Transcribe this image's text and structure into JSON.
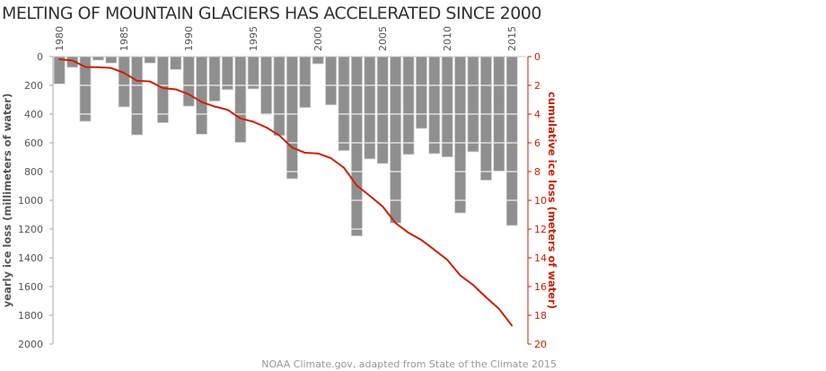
{
  "chart_data": {
    "type": "bar",
    "title": "MELTING OF MOUNTAIN GLACIERS HAS ACCELERATED SINCE 2000",
    "ylabel": "yearly ice loss (millimeters of water)",
    "y2label": "cumulative ice loss (meters of water)",
    "credit": "NOAA Climate.gov, adapted from State of the Climate 2015",
    "ylim": [
      0,
      2000
    ],
    "y2lim": [
      0,
      20
    ],
    "y_inverted": true,
    "yticks": [
      "0",
      "200",
      "400",
      "600",
      "800",
      "1000",
      "1200",
      "1400",
      "1600",
      "1800",
      "2000"
    ],
    "y2ticks": [
      "0",
      "2",
      "4",
      "6",
      "8",
      "10",
      "12",
      "14",
      "16",
      "18",
      "20"
    ],
    "xtick_labels": [
      "1980",
      "1985",
      "1990",
      "1995",
      "2000",
      "2005",
      "2010",
      "2015"
    ],
    "colors": {
      "bars": "#8f8f8f",
      "line": "#cc1f00",
      "title": "#333333"
    },
    "categories": [
      1980,
      1981,
      1982,
      1983,
      1984,
      1985,
      1986,
      1987,
      1988,
      1989,
      1990,
      1991,
      1992,
      1993,
      1994,
      1995,
      1996,
      1997,
      1998,
      1999,
      2000,
      2001,
      2002,
      2003,
      2004,
      2005,
      2006,
      2007,
      2008,
      2009,
      2010,
      2011,
      2012,
      2013,
      2014,
      2015
    ],
    "series": [
      {
        "type": "bar",
        "axis": "left",
        "values": [
          190,
          75,
          450,
          25,
          45,
          350,
          545,
          45,
          460,
          90,
          345,
          540,
          310,
          230,
          600,
          225,
          405,
          550,
          850,
          355,
          50,
          336,
          654,
          1248,
          712,
          744,
          1158,
          681,
          500,
          675,
          698,
          1088,
          662,
          860,
          798,
          1175
        ]
      },
      {
        "type": "line",
        "axis": "right",
        "values": [
          0.19,
          0.27,
          0.72,
          0.74,
          0.79,
          1.14,
          1.68,
          1.73,
          2.19,
          2.28,
          2.62,
          3.16,
          3.47,
          3.7,
          4.3,
          4.53,
          4.93,
          5.48,
          6.33,
          6.69,
          6.74,
          7.07,
          7.73,
          8.97,
          9.68,
          10.43,
          11.58,
          12.26,
          12.76,
          13.44,
          14.14,
          15.22,
          15.89,
          16.75,
          17.55,
          18.72
        ]
      }
    ]
  }
}
